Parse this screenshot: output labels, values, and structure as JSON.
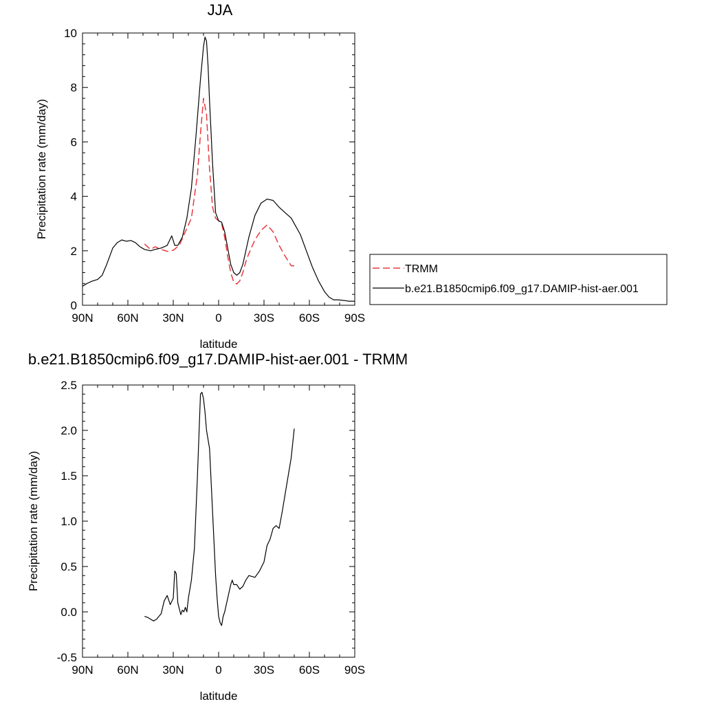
{
  "chart_data": [
    {
      "type": "line",
      "title": "JJA",
      "xlabel": "latitude",
      "ylabel": "Precipitation rate (mm/day)",
      "x_tick_labels": [
        "90N",
        "60N",
        "30N",
        "0",
        "30S",
        "60S",
        "90S"
      ],
      "xlim": [
        90,
        -90
      ],
      "ylim": [
        0,
        10
      ],
      "y_ticks": [
        0,
        2,
        4,
        6,
        8,
        10
      ],
      "y_tick_labels": [
        "0",
        "2",
        "4",
        "6",
        "8",
        "10"
      ],
      "legend_position": "right",
      "series": [
        {
          "name": "TRMM",
          "color": "#e8383d",
          "dash": "dashed",
          "x": [
            49,
            45,
            42,
            38,
            34,
            30,
            26,
            22,
            18,
            14,
            12,
            10,
            8,
            6,
            4,
            2,
            0,
            -2,
            -4,
            -6,
            -8,
            -10,
            -12,
            -14,
            -16,
            -18,
            -20,
            -24,
            -28,
            -32,
            -36,
            -40,
            -44,
            -48,
            -50
          ],
          "y": [
            2.25,
            2.05,
            2.15,
            2.05,
            1.98,
            2.02,
            2.2,
            2.7,
            3.2,
            4.8,
            6.3,
            7.6,
            7.0,
            5.0,
            3.6,
            3.2,
            3.1,
            3.0,
            2.5,
            1.8,
            1.2,
            0.85,
            0.78,
            0.9,
            1.2,
            1.6,
            1.9,
            2.4,
            2.75,
            2.95,
            2.7,
            2.2,
            1.8,
            1.45,
            1.45
          ]
        },
        {
          "name": "b.e21.B1850cmip6.f09_g17.DAMIP-hist-aer.001",
          "color": "#000000",
          "dash": "solid",
          "x": [
            90,
            87,
            84,
            80,
            77,
            74,
            70,
            67,
            64,
            61,
            58,
            55,
            52,
            49,
            45,
            42,
            38,
            34,
            31,
            29,
            27,
            24,
            21,
            18,
            15,
            12,
            10,
            9,
            8,
            7,
            6,
            4,
            2,
            0,
            -2,
            -4,
            -6,
            -8,
            -10,
            -12,
            -14,
            -16,
            -18,
            -20,
            -24,
            -28,
            -32,
            -36,
            -40,
            -42,
            -44,
            -46,
            -48,
            -50,
            -54,
            -58,
            -62,
            -66,
            -70,
            -73,
            -76,
            -79,
            -82,
            -84,
            -86,
            -88,
            -90
          ],
          "y": [
            0.7,
            0.8,
            0.88,
            0.95,
            1.1,
            1.5,
            2.1,
            2.3,
            2.4,
            2.35,
            2.38,
            2.3,
            2.15,
            2.05,
            2.0,
            2.05,
            2.1,
            2.2,
            2.55,
            2.2,
            2.2,
            2.5,
            3.2,
            4.3,
            6.2,
            8.3,
            9.5,
            9.85,
            9.7,
            8.8,
            7.5,
            5.2,
            3.4,
            3.1,
            3.05,
            2.7,
            2.1,
            1.5,
            1.2,
            1.1,
            1.2,
            1.5,
            2.0,
            2.5,
            3.3,
            3.75,
            3.9,
            3.85,
            3.6,
            3.5,
            3.4,
            3.3,
            3.2,
            3.0,
            2.6,
            2.0,
            1.4,
            0.9,
            0.5,
            0.3,
            0.2,
            0.2,
            0.18,
            0.17,
            0.15,
            0.15,
            0.15
          ]
        }
      ]
    },
    {
      "type": "line",
      "title": "b.e21.B1850cmip6.f09_g17.DAMIP-hist-aer.001 - TRMM",
      "xlabel": "latitude",
      "ylabel": "Precipitation rate (mm/day)",
      "x_tick_labels": [
        "90N",
        "60N",
        "30N",
        "0",
        "30S",
        "60S",
        "90S"
      ],
      "xlim": [
        90,
        -90
      ],
      "ylim": [
        -0.5,
        2.5
      ],
      "y_ticks": [
        -0.5,
        0.0,
        0.5,
        1.0,
        1.5,
        2.0,
        2.5
      ],
      "y_tick_labels": [
        "-0.5",
        "0.0",
        "0.5",
        "1.0",
        "1.5",
        "2.0",
        "2.5"
      ],
      "series": [
        {
          "name": "",
          "color": "#000000",
          "dash": "solid",
          "x": [
            49,
            47,
            45,
            43,
            41,
            38,
            36,
            34,
            32,
            30,
            29,
            28,
            27,
            25,
            24,
            23,
            22,
            21,
            20,
            19,
            18,
            16,
            14,
            12,
            11,
            10,
            9,
            8,
            6,
            4,
            2,
            1,
            0,
            -1,
            -2,
            -3,
            -4,
            -6,
            -8,
            -9,
            -10,
            -12,
            -14,
            -16,
            -18,
            -20,
            -24,
            -27,
            -30,
            -32,
            -34,
            -36,
            -38,
            -40,
            -42,
            -44,
            -46,
            -48,
            -50
          ],
          "y": [
            -0.05,
            -0.06,
            -0.08,
            -0.1,
            -0.08,
            -0.02,
            0.12,
            0.18,
            0.08,
            0.15,
            0.45,
            0.42,
            0.1,
            -0.03,
            0.02,
            0.0,
            0.05,
            0.0,
            0.15,
            0.25,
            0.35,
            0.7,
            1.5,
            2.4,
            2.42,
            2.35,
            2.2,
            2.0,
            1.8,
            1.1,
            0.4,
            0.15,
            -0.05,
            -0.12,
            -0.15,
            -0.05,
            0.0,
            0.15,
            0.3,
            0.35,
            0.3,
            0.3,
            0.25,
            0.28,
            0.35,
            0.4,
            0.38,
            0.45,
            0.55,
            0.73,
            0.8,
            0.92,
            0.95,
            0.92,
            1.1,
            1.3,
            1.5,
            1.7,
            2.02
          ]
        }
      ]
    }
  ]
}
